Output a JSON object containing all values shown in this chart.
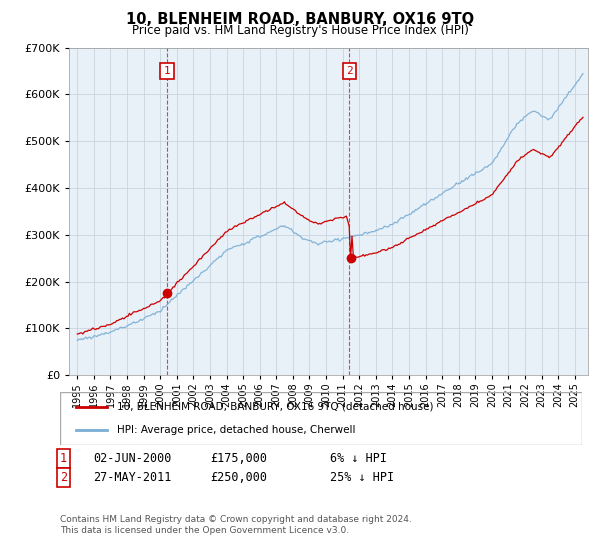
{
  "title": "10, BLENHEIM ROAD, BANBURY, OX16 9TQ",
  "subtitle": "Price paid vs. HM Land Registry's House Price Index (HPI)",
  "legend_line1": "10, BLENHEIM ROAD, BANBURY, OX16 9TQ (detached house)",
  "legend_line2": "HPI: Average price, detached house, Cherwell",
  "sale1_date": "02-JUN-2000",
  "sale1_price": "£175,000",
  "sale1_pct": "6% ↓ HPI",
  "sale1_year": 2000.42,
  "sale1_value": 175000,
  "sale2_date": "27-MAY-2011",
  "sale2_price": "£250,000",
  "sale2_pct": "25% ↓ HPI",
  "sale2_year": 2011.4,
  "sale2_value": 250000,
  "footer_line1": "Contains HM Land Registry data © Crown copyright and database right 2024.",
  "footer_line2": "This data is licensed under the Open Government Licence v3.0.",
  "red_color": "#cc0000",
  "blue_color": "#7aaed4",
  "bg_color": "#e8f0f8",
  "grid_color": "#c8d4e0",
  "ylim": [
    0,
    700000
  ],
  "xlim_start": 1994.5,
  "xlim_end": 2025.8
}
